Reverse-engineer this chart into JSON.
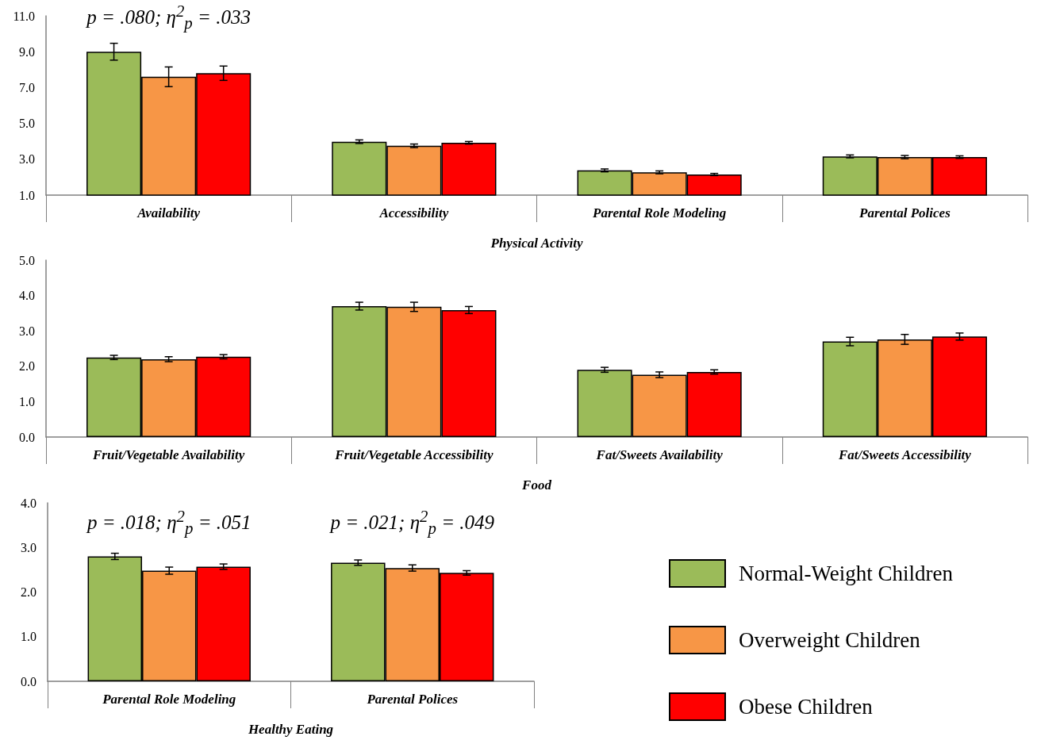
{
  "chart_data": [
    {
      "type": "bar",
      "categories": [
        "Availability",
        "Accessibility",
        "Parental Role Modeling",
        "Parental Polices"
      ],
      "xlabel": "Physical Activity",
      "ylim": [
        1,
        11
      ],
      "yticks": [
        {
          "value": 1,
          "label": "1.0"
        },
        {
          "value": 3,
          "label": "3.0"
        },
        {
          "value": 5,
          "label": "5.0"
        },
        {
          "value": 7,
          "label": "7.0"
        },
        {
          "value": 9,
          "label": "9.0"
        },
        {
          "value": 11,
          "label": "11.0"
        }
      ],
      "series": [
        {
          "color": "#9bbb59",
          "values": [
            9.0,
            3.98,
            2.38,
            3.16
          ],
          "errors": [
            0.47,
            0.1,
            0.08,
            0.08
          ]
        },
        {
          "color": "#f79646",
          "values": [
            7.6,
            3.75,
            2.27,
            3.12
          ],
          "errors": [
            0.55,
            0.1,
            0.08,
            0.09
          ]
        },
        {
          "color": "#ff0000",
          "values": [
            7.8,
            3.92,
            2.15,
            3.12
          ],
          "errors": [
            0.4,
            0.07,
            0.06,
            0.07
          ]
        }
      ],
      "annotations": [
        "p = .080; η$^{2}$$_{p}$ = .033"
      ]
    },
    {
      "type": "bar",
      "categories": [
        "Fruit/Vegetable Availability",
        "Fruit/Vegetable Accessibility",
        "Fat/Sweets Availability",
        "Fat/Sweets Accessibility"
      ],
      "xlabel": "Food",
      "ylim": [
        0,
        5
      ],
      "yticks": [
        {
          "value": 0,
          "label": "0.0"
        },
        {
          "value": 1,
          "label": "1.0"
        },
        {
          "value": 2,
          "label": "2.0"
        },
        {
          "value": 3,
          "label": "3.0"
        },
        {
          "value": 4,
          "label": "4.0"
        },
        {
          "value": 5,
          "label": "5.0"
        }
      ],
      "series": [
        {
          "color": "#9bbb59",
          "values": [
            2.25,
            3.7,
            1.9,
            2.7
          ],
          "errors": [
            0.06,
            0.11,
            0.07,
            0.12
          ]
        },
        {
          "color": "#f79646",
          "values": [
            2.2,
            3.68,
            1.76,
            2.76
          ],
          "errors": [
            0.07,
            0.13,
            0.08,
            0.14
          ]
        },
        {
          "color": "#ff0000",
          "values": [
            2.27,
            3.59,
            1.84,
            2.84
          ],
          "errors": [
            0.06,
            0.1,
            0.06,
            0.1
          ]
        }
      ]
    },
    {
      "type": "bar",
      "categories": [
        "Parental Role Modeling",
        "Parental Polices"
      ],
      "xlabel": "Healthy Eating",
      "ylim": [
        0,
        4
      ],
      "yticks": [
        {
          "value": 0,
          "label": "0.0"
        },
        {
          "value": 1,
          "label": "1.0"
        },
        {
          "value": 2,
          "label": "2.0"
        },
        {
          "value": 3,
          "label": "3.0"
        },
        {
          "value": 4,
          "label": "4.0"
        }
      ],
      "legend": "right",
      "series": [
        {
          "name": "Normal-Weight Children",
          "color": "#9bbb59",
          "values": [
            2.8,
            2.66
          ],
          "errors": [
            0.07,
            0.06
          ]
        },
        {
          "name": "Overweight Children",
          "color": "#f79646",
          "values": [
            2.48,
            2.54
          ],
          "errors": [
            0.08,
            0.07
          ]
        },
        {
          "name": "Obese Children",
          "color": "#ff0000",
          "values": [
            2.57,
            2.43
          ],
          "errors": [
            0.06,
            0.05
          ]
        }
      ],
      "annotations": [
        "p = .018; η$^{2}$$_{p}$ = .051",
        "p = .021; η$^{2}$$_{p}$ = .049"
      ]
    }
  ]
}
